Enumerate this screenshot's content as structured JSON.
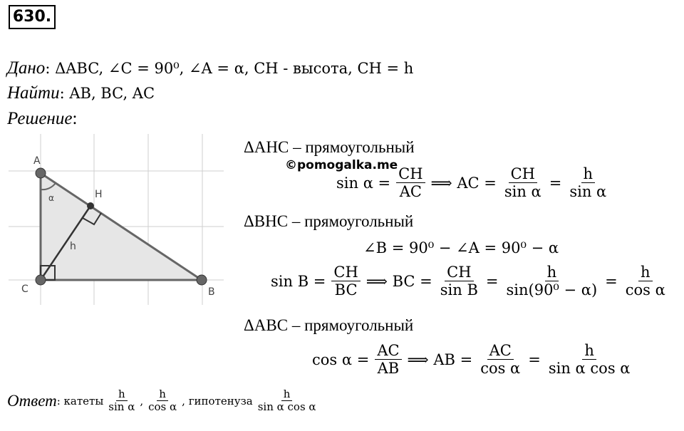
{
  "header": {
    "number": "630."
  },
  "given": {
    "label": "Дано",
    "text": ": ΔABC, ∠C = 90⁰, ∠A = α, CH - высота, CH = h"
  },
  "find": {
    "label": "Найти",
    "text": ": AB, BC, AC"
  },
  "solution": {
    "label": "Решение",
    "text": ":"
  },
  "watermark": "©pomogalka.me",
  "figure": {
    "labels": {
      "a": "A",
      "h_point": "H",
      "alpha": "α",
      "h": "h",
      "c": "C",
      "b": "B"
    }
  },
  "steps": [
    {
      "heading": "ΔAHC – прямоугольный",
      "formulas": [
        [
          {
            "t": "sin α ="
          },
          {
            "num": "CH",
            "den": "AC"
          },
          {
            "t": "⟹ AC ="
          },
          {
            "num": "CH",
            "den": "sin α"
          },
          {
            "t": "="
          },
          {
            "num": "h",
            "den": "sin α"
          }
        ]
      ]
    },
    {
      "heading": "ΔBHC – прямоугольный",
      "formulas": [
        [
          {
            "t": "∠B = 90⁰ − ∠A = 90⁰ − α"
          }
        ],
        [
          {
            "t": "sin B ="
          },
          {
            "num": "CH",
            "den": "BC"
          },
          {
            "t": "⟹ BC ="
          },
          {
            "num": "CH",
            "den": "sin B"
          },
          {
            "t": "="
          },
          {
            "num": "h",
            "den": "sin(90⁰ − α)"
          },
          {
            "t": "="
          },
          {
            "num": "h",
            "den": "cos α"
          }
        ]
      ]
    },
    {
      "heading": "ΔABC – прямоугольный",
      "formulas": [
        [
          {
            "t": "cos α ="
          },
          {
            "num": "AC",
            "den": "AB"
          },
          {
            "t": "⟹ AB ="
          },
          {
            "num": "AC",
            "den": "cos α"
          },
          {
            "t": "="
          },
          {
            "num": "h",
            "den": "sin α cos α"
          }
        ]
      ]
    }
  ],
  "answer": {
    "label": "Ответ",
    "parts": [
      {
        "t": ": катеты"
      },
      {
        "num": "h",
        "den": "sin α"
      },
      {
        "t": ","
      },
      {
        "num": "h",
        "den": "cos α"
      },
      {
        "t": ", гипотенуза"
      },
      {
        "num": "h",
        "den": "sin α cos α"
      }
    ]
  }
}
